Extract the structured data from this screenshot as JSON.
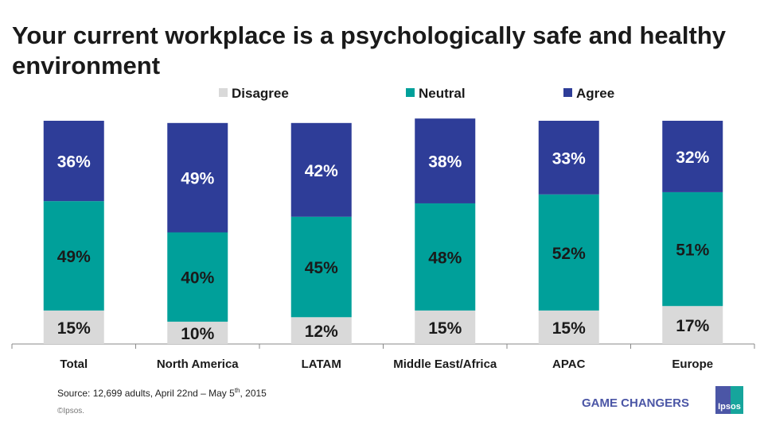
{
  "chart_data": {
    "type": "stacked-bar",
    "title": "Your current workplace is a psychologically safe and healthy environment",
    "categories": [
      "Total",
      "North America",
      "LATAM",
      "Middle East/Africa",
      "APAC",
      "Europe"
    ],
    "series": [
      {
        "name": "Disagree",
        "color": "#d9d9d9",
        "label_color": "#1a1a1a",
        "values": [
          15,
          10,
          12,
          15,
          15,
          17
        ]
      },
      {
        "name": "Neutral",
        "color": "#00a09a",
        "label_color": "#1a1a1a",
        "values": [
          49,
          40,
          45,
          48,
          52,
          51
        ]
      },
      {
        "name": "Agree",
        "color": "#2e3d98",
        "label_color": "#ffffff",
        "values": [
          36,
          49,
          42,
          38,
          33,
          32
        ]
      }
    ],
    "value_suffix": "%",
    "ylim": [
      0,
      100
    ],
    "legend_position": "top",
    "grid": false
  },
  "footer": {
    "source": "Source:  12,699 adults, April 22nd – May 5",
    "source_sup": "th",
    "source_end": ", 2015",
    "copyright": "©Ipsos.",
    "brand": "GAME CHANGERS",
    "logo_text": "Ipsos"
  }
}
